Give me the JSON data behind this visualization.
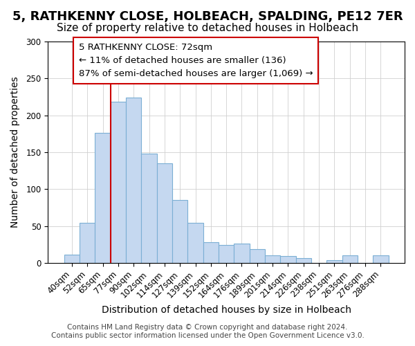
{
  "title": "5, RATHKENNY CLOSE, HOLBEACH, SPALDING, PE12 7ER",
  "subtitle": "Size of property relative to detached houses in Holbeach",
  "xlabel": "Distribution of detached houses by size in Holbeach",
  "ylabel": "Number of detached properties",
  "bar_labels": [
    "40sqm",
    "52sqm",
    "65sqm",
    "77sqm",
    "90sqm",
    "102sqm",
    "114sqm",
    "127sqm",
    "139sqm",
    "152sqm",
    "164sqm",
    "176sqm",
    "189sqm",
    "201sqm",
    "214sqm",
    "226sqm",
    "238sqm",
    "251sqm",
    "263sqm",
    "276sqm",
    "288sqm"
  ],
  "bar_values": [
    11,
    54,
    176,
    218,
    224,
    148,
    135,
    85,
    54,
    28,
    24,
    26,
    19,
    10,
    9,
    7,
    0,
    4,
    10,
    0,
    10
  ],
  "bar_color": "#c5d8f0",
  "bar_edge_color": "#7bafd4",
  "vline_x_index": 2,
  "vline_color": "#cc0000",
  "annotation_box_text": "5 RATHKENNY CLOSE: 72sqm\n← 11% of detached houses are smaller (136)\n87% of semi-detached houses are larger (1,069) →",
  "annotation_box_color": "#ffffff",
  "annotation_box_edge_color": "#cc0000",
  "ylim": [
    0,
    300
  ],
  "yticks": [
    0,
    50,
    100,
    150,
    200,
    250,
    300
  ],
  "footer_line1": "Contains HM Land Registry data © Crown copyright and database right 2024.",
  "footer_line2": "Contains public sector information licensed under the Open Government Licence v3.0.",
  "title_fontsize": 13,
  "subtitle_fontsize": 11,
  "xlabel_fontsize": 10,
  "ylabel_fontsize": 10,
  "tick_fontsize": 8.5,
  "annotation_fontsize": 9.5,
  "footer_fontsize": 7.5
}
